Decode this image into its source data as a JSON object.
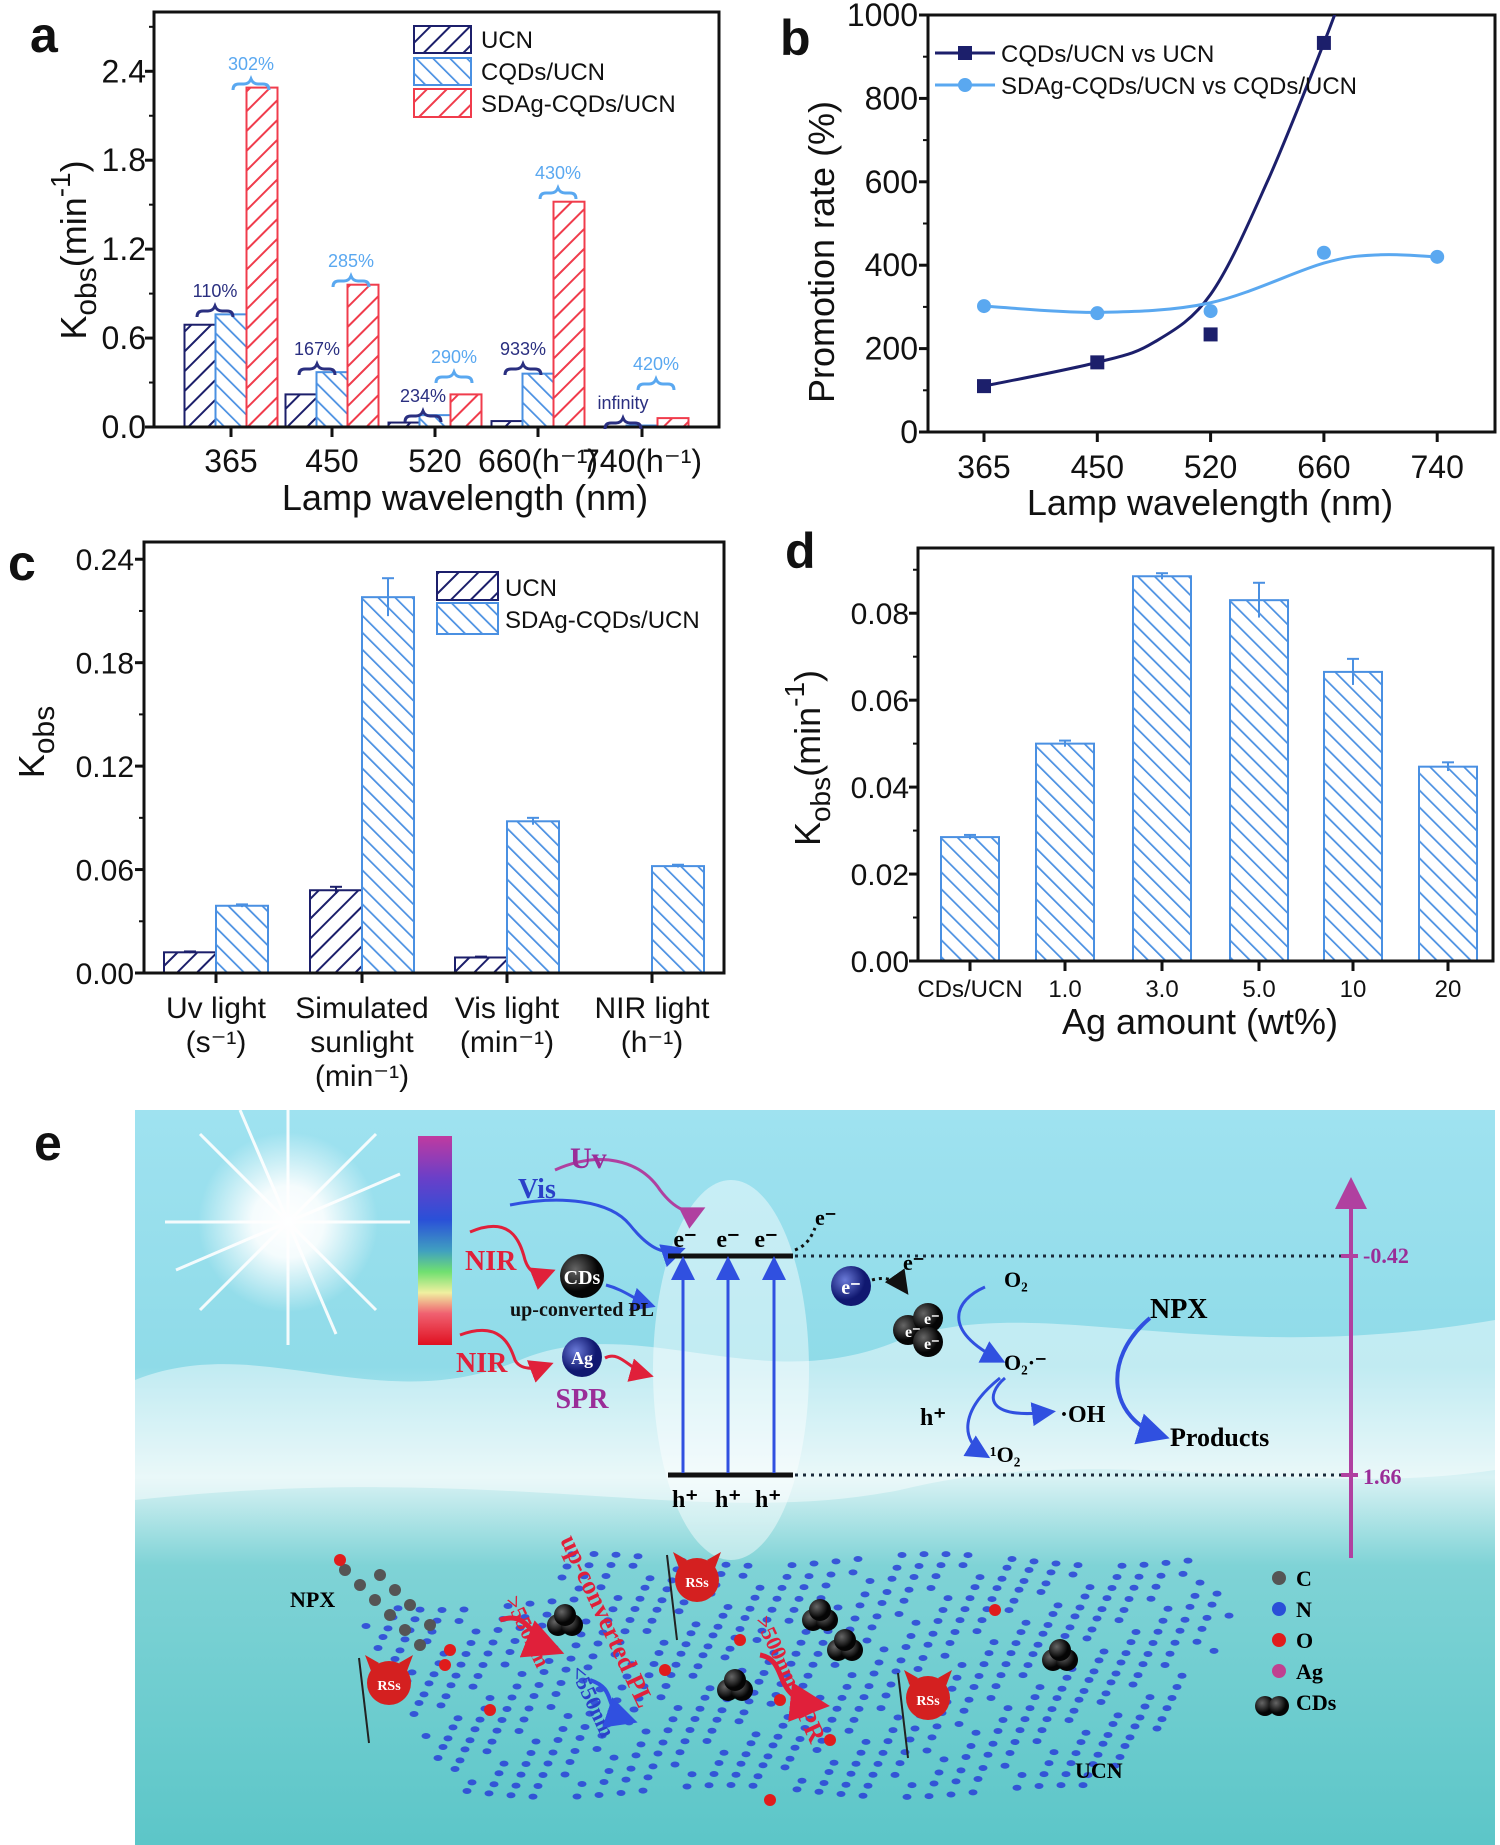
{
  "panel_labels": {
    "a": "a",
    "b": "b",
    "c": "c",
    "d": "d",
    "e": "e"
  },
  "chart_data": [
    {
      "panel": "a",
      "type": "bar",
      "categories": [
        "365",
        "450",
        "520",
        "660(h⁻¹)",
        "740(h⁻¹)"
      ],
      "series": [
        {
          "name": "UCN",
          "values": [
            0.69,
            0.22,
            0.03,
            0.04,
            0.0
          ],
          "color": "#1c1f6b",
          "hatch": "forward"
        },
        {
          "name": "CQDs/UCN",
          "values": [
            0.76,
            0.37,
            0.08,
            0.36,
            0.01
          ],
          "color": "#4a90e2",
          "hatch": "backward"
        },
        {
          "name": "SDAg-CQDs/UCN",
          "values": [
            2.29,
            0.96,
            0.22,
            1.52,
            0.06
          ],
          "color": "#f03c4c",
          "hatch": "forward"
        }
      ],
      "xlabel": "Lamp wavelength (nm)",
      "ylabel_parts": [
        "K",
        "obs",
        "(min",
        "-1",
        ")"
      ],
      "ylim": [
        0,
        2.8
      ],
      "yticks": [
        "0.0",
        "0.6",
        "1.2",
        "1.8",
        "2.4"
      ],
      "ytick_values": [
        0,
        0.6,
        1.2,
        1.8,
        2.4
      ],
      "legend": "top-right",
      "grid": false,
      "annotations": [
        {
          "text": "110%",
          "color": "#2a2f80"
        },
        {
          "text": "302%",
          "color": "#5aa8f0"
        },
        {
          "text": "167%",
          "color": "#2a2f80"
        },
        {
          "text": "285%",
          "color": "#5aa8f0"
        },
        {
          "text": "234%",
          "color": "#2a2f80"
        },
        {
          "text": "290%",
          "color": "#5aa8f0"
        },
        {
          "text": "933%",
          "color": "#2a2f80"
        },
        {
          "text": "430%",
          "color": "#5aa8f0"
        },
        {
          "text": "infinity",
          "color": "#2a2f80"
        },
        {
          "text": "420%",
          "color": "#5aa8f0"
        }
      ]
    },
    {
      "panel": "b",
      "type": "line",
      "categories": [
        "365",
        "450",
        "520",
        "660",
        "740"
      ],
      "series": [
        {
          "name": "CQDs/UCN vs UCN",
          "values": [
            110,
            167,
            234,
            933,
            null
          ],
          "color": "#1c1f6b",
          "marker": "square"
        },
        {
          "name": "SDAg-CQDs/UCN vs CQDs/UCN",
          "values": [
            302,
            285,
            290,
            430,
            420
          ],
          "color": "#5aa8f0",
          "marker": "circle"
        }
      ],
      "xlabel": "Lamp wavelength (nm)",
      "ylabel": "Promotion rate (%)",
      "ylim": [
        0,
        1000
      ],
      "yticks": [
        "0",
        "200",
        "400",
        "600",
        "800",
        "1000"
      ],
      "ytick_values": [
        0,
        200,
        400,
        600,
        800,
        1000
      ],
      "legend": "top-left",
      "grid": false
    },
    {
      "panel": "c",
      "type": "bar",
      "categories": [
        [
          "Uv light",
          "(s⁻¹)"
        ],
        [
          "Simulated",
          "sunlight",
          "(min⁻¹)"
        ],
        [
          "Vis light",
          "(min⁻¹)"
        ],
        [
          "NIR light",
          "(h⁻¹)"
        ]
      ],
      "series": [
        {
          "name": "UCN",
          "values": [
            0.012,
            0.048,
            0.009,
            0.0
          ],
          "errors": [
            0.0005,
            0.002,
            0.0005,
            0
          ],
          "color": "#1c1f6b",
          "hatch": "forward"
        },
        {
          "name": "SDAg-CQDs/UCN",
          "values": [
            0.039,
            0.218,
            0.088,
            0.062
          ],
          "errors": [
            0.0008,
            0.011,
            0.002,
            0.0008
          ],
          "color": "#4a90e2",
          "hatch": "backward"
        }
      ],
      "xlabel": "",
      "ylabel_parts": [
        "K",
        "obs"
      ],
      "ylim": [
        0,
        0.25
      ],
      "yticks": [
        "0.00",
        "0.06",
        "0.12",
        "0.18",
        "0.24"
      ],
      "ytick_values": [
        0,
        0.06,
        0.12,
        0.18,
        0.24
      ],
      "legend": "top-right",
      "grid": false
    },
    {
      "panel": "d",
      "type": "bar",
      "categories": [
        "CDs/UCN",
        "1.0",
        "3.0",
        "5.0",
        "10",
        "20"
      ],
      "series": [
        {
          "values": [
            0.0285,
            0.05,
            0.0885,
            0.083,
            0.0665,
            0.0447
          ],
          "errors": [
            0.0005,
            0.0007,
            0.0007,
            0.004,
            0.003,
            0.001
          ],
          "color": "#4a90e2",
          "hatch": "backward"
        }
      ],
      "xlabel": "Ag amount (wt%)",
      "ylabel_parts": [
        "K",
        "obs",
        "(min",
        "-1",
        ")"
      ],
      "ylim": [
        0,
        0.095
      ],
      "yticks": [
        "0.00",
        "0.02",
        "0.04",
        "0.06",
        "0.08"
      ],
      "ytick_values": [
        0,
        0.02,
        0.04,
        0.06,
        0.08
      ],
      "grid": false
    }
  ],
  "diagram": {
    "uv": "Uv",
    "vis": "Vis",
    "nir1": "NIR",
    "nir2": "NIR",
    "cds_ball": "CDs",
    "ag_ball": "Ag",
    "up_converted_pl": "up-converted PL",
    "spr": "SPR",
    "e_minus": "e⁻",
    "h_plus": "h⁺",
    "cb_potential": "-0.42",
    "vb_potential": "1.66",
    "o2": "O₂",
    "o2_radical": "O₂·⁻",
    "oh_radical": "·OH",
    "h_plus_label": "h⁺",
    "singlet_o2": "¹O₂",
    "npx_top": "NPX",
    "products": "Products",
    "npx_mol": "NPX",
    "ucn": "UCN",
    "gt550": ">550nm",
    "lt550": "<550nm",
    "gt500": ">500nm",
    "up_pl_bottom": "up-converted PL",
    "spr_bottom": "SPR",
    "rss": "RSs",
    "legend": [
      {
        "label": "C",
        "color": "#555555"
      },
      {
        "label": "N",
        "color": "#2a4fd8"
      },
      {
        "label": "O",
        "color": "#e01c1c"
      },
      {
        "label": "Ag",
        "color": "#c04090"
      },
      {
        "label": "CDs",
        "color": "#111111"
      }
    ]
  }
}
